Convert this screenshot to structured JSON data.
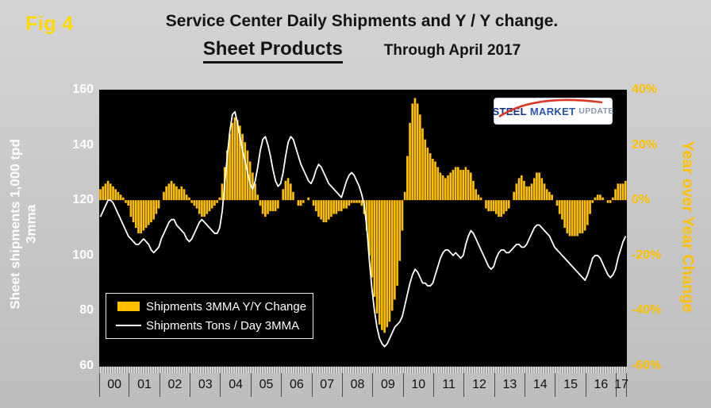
{
  "fig_label": "Fig 4",
  "title": {
    "line1": "Service Center Daily Shipments and Y / Y change.",
    "subtitle": "Sheet Products",
    "through": "Through April 2017"
  },
  "logo": {
    "steel": "STEEL",
    "market": "MARKET",
    "update": "UPDATE"
  },
  "legend": [
    {
      "label": "Shipments 3MMA Y/Y Change",
      "swatch": "bar",
      "color": "#FFC000"
    },
    {
      "label": "Shipments Tons / Day 3MMA",
      "swatch": "line",
      "color": "#FFFFFF"
    }
  ],
  "axes": {
    "left": {
      "title_line1": "Sheet shipments 1,000 tpd",
      "title_line2": "3mma",
      "ticks": [
        "160",
        "140",
        "120",
        "100",
        "80",
        "60"
      ]
    },
    "right": {
      "title": "Year over Year Change",
      "ticks": [
        "40%",
        "20%",
        "0%",
        "-20%",
        "-40%",
        "-60%"
      ]
    },
    "x": {
      "years": [
        "00",
        "01",
        "02",
        "03",
        "04",
        "05",
        "06",
        "07",
        "08",
        "09",
        "10",
        "11",
        "12",
        "13",
        "14",
        "15",
        "16",
        "17"
      ],
      "months_in_last_year": 4
    }
  },
  "chart_data": {
    "type": "combo",
    "title": "Service Center Daily Shipments and Y / Y change. Sheet Products Through April 2017",
    "x_start": "2000-01",
    "x_end": "2017-04",
    "grid": "off",
    "legend_position": "inside-lower-left",
    "plot_background": "#000000",
    "left_axis": {
      "min": 60,
      "max": 160,
      "ticks": [
        160,
        140,
        120,
        100,
        80,
        60
      ],
      "label": "Sheet shipments 1,000 tpd 3mma"
    },
    "right_axis": {
      "min": -60,
      "max": 40,
      "ticks": [
        40,
        20,
        0,
        -20,
        -40,
        -60
      ],
      "label": "Year over Year Change",
      "unit": "%"
    },
    "series": [
      {
        "name": "Shipments 3MMA Y/Y Change",
        "type": "bar",
        "axis": "right",
        "unit": "%",
        "color": "#FFC000",
        "values": [
          4,
          5,
          6,
          7,
          6,
          5,
          4,
          3,
          2,
          1,
          -1,
          -2,
          -6,
          -8,
          -10,
          -12,
          -12,
          -11,
          -10,
          -9,
          -8,
          -7,
          -5,
          -3,
          0,
          3,
          5,
          6,
          7,
          6,
          5,
          4,
          5,
          4,
          2,
          1,
          -1,
          -2,
          -3,
          -5,
          -6,
          -6,
          -5,
          -4,
          -3,
          -2,
          -1,
          1,
          6,
          12,
          18,
          24,
          28,
          30,
          29,
          27,
          24,
          21,
          18,
          14,
          10,
          6,
          2,
          -2,
          -5,
          -6,
          -5,
          -4,
          -4,
          -4,
          -3,
          0,
          4,
          7,
          8,
          6,
          3,
          0,
          -2,
          -2,
          -1,
          0,
          1,
          0,
          -2,
          -4,
          -6,
          -7,
          -8,
          -8,
          -7,
          -6,
          -5,
          -5,
          -4,
          -4,
          -3,
          -3,
          -2,
          -1,
          -1,
          -1,
          -1,
          -2,
          -5,
          -11,
          -20,
          -28,
          -35,
          -41,
          -45,
          -47,
          -48,
          -46,
          -44,
          -40,
          -36,
          -31,
          -22,
          -11,
          3,
          16,
          28,
          35,
          37,
          35,
          31,
          26,
          22,
          19,
          17,
          15,
          14,
          12,
          10,
          9,
          8,
          9,
          10,
          11,
          12,
          12,
          11,
          11,
          12,
          11,
          10,
          7,
          4,
          2,
          1,
          0,
          -3,
          -4,
          -4,
          -4,
          -5,
          -6,
          -6,
          -5,
          -4,
          -3,
          0,
          3,
          6,
          8,
          9,
          7,
          5,
          5,
          6,
          8,
          10,
          10,
          8,
          6,
          4,
          3,
          2,
          0,
          -2,
          -5,
          -7,
          -10,
          -12,
          -13,
          -13,
          -13,
          -13,
          -12,
          -12,
          -11,
          -9,
          -5,
          -1,
          1,
          2,
          2,
          1,
          0,
          -1,
          -1,
          1,
          4,
          6,
          6,
          6,
          7
        ]
      },
      {
        "name": "Shipments Tons / Day 3MMA",
        "type": "line",
        "axis": "left",
        "unit": "1,000 tpd",
        "color": "#FFFFFF",
        "values": [
          114,
          116,
          118,
          120,
          120,
          119,
          117,
          115,
          113,
          111,
          109,
          107,
          106,
          105,
          104,
          104,
          105,
          106,
          105,
          104,
          102,
          101,
          102,
          103,
          106,
          108,
          110,
          112,
          113,
          113,
          111,
          110,
          109,
          108,
          106,
          105,
          106,
          108,
          110,
          112,
          113,
          112,
          111,
          110,
          109,
          108,
          108,
          110,
          116,
          126,
          136,
          145,
          151,
          152,
          148,
          143,
          138,
          134,
          130,
          126,
          124,
          127,
          132,
          138,
          142,
          143,
          140,
          136,
          131,
          127,
          125,
          126,
          130,
          136,
          141,
          143,
          142,
          139,
          136,
          133,
          131,
          129,
          127,
          126,
          128,
          131,
          133,
          132,
          130,
          128,
          126,
          125,
          124,
          123,
          122,
          121,
          124,
          127,
          129,
          130,
          129,
          127,
          125,
          122,
          118,
          110,
          98,
          88,
          80,
          74,
          70,
          68,
          67,
          68,
          70,
          72,
          74,
          75,
          76,
          78,
          82,
          86,
          90,
          93,
          95,
          94,
          92,
          90,
          90,
          89,
          89,
          90,
          93,
          96,
          99,
          101,
          102,
          102,
          101,
          100,
          101,
          100,
          99,
          100,
          104,
          107,
          109,
          108,
          106,
          104,
          102,
          100,
          98,
          96,
          95,
          96,
          99,
          101,
          102,
          102,
          101,
          101,
          102,
          103,
          104,
          104,
          103,
          103,
          104,
          106,
          108,
          110,
          111,
          111,
          110,
          109,
          108,
          107,
          105,
          103,
          102,
          101,
          100,
          99,
          98,
          97,
          96,
          95,
          94,
          93,
          92,
          91,
          93,
          96,
          99,
          100,
          100,
          99,
          97,
          95,
          93,
          92,
          93,
          95,
          99,
          102,
          105,
          107
        ]
      }
    ]
  },
  "colors": {
    "background": "#C9C9C9",
    "plot": "#000000",
    "bars": "#FFC000",
    "line": "#FFFFFF",
    "left_axis_text": "#FFFFFF",
    "right_axis_text": "#FFC000",
    "fig_label": "#FFD900",
    "title_text": "#141414"
  }
}
